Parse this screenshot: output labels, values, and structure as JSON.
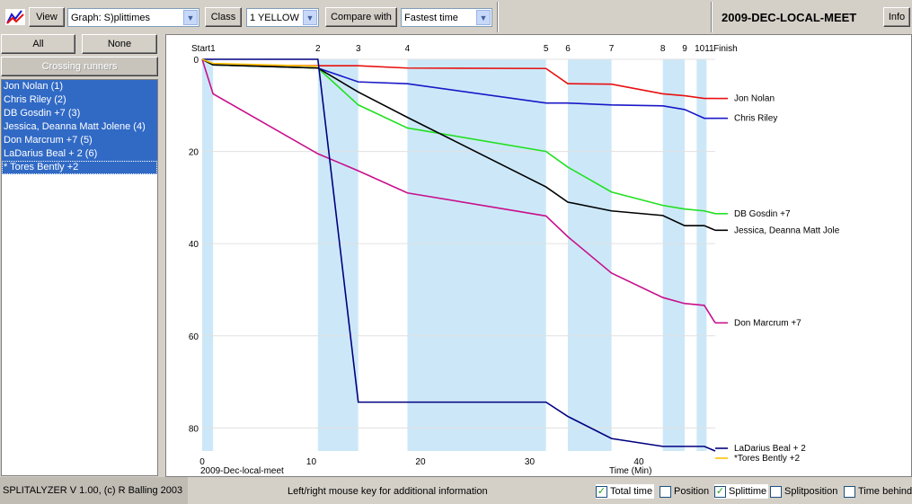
{
  "toolbar": {
    "view_label": "View",
    "graph_select_value": "Graph: S)plittimes",
    "class_label": "Class",
    "class_select_value": "1 YELLOW",
    "compare_label": "Compare with",
    "compare_select_value": "Fastest time",
    "meet_title": "2009-DEC-LOCAL-MEET",
    "info_label": "Info"
  },
  "sidebar": {
    "all_label": "All",
    "none_label": "None",
    "crossing_label": "Crossing runners",
    "runners": [
      "Jon Nolan  (1)",
      "Chris Riley  (2)",
      "DB Gosdin +7  (3)",
      "Jessica, Deanna Matt Jolene  (4)",
      "Don Marcrum +7  (5)",
      "LaDarius Beal + 2  (6)",
      "* Tores Bently +2"
    ]
  },
  "graph": {
    "event_label": "2009-Dec-local-meet",
    "x_axis_label": "Time (Min)",
    "colors": {
      "shade": "#cce8f8",
      "gridline": "#e0e0e0"
    }
  },
  "chart_data": {
    "type": "line",
    "x_name": "Time (Min)",
    "xlim": [
      0,
      47
    ],
    "ylim": [
      0,
      85
    ],
    "x_ticks": [
      0,
      10,
      20,
      30,
      40
    ],
    "y_ticks": [
      0,
      20,
      40,
      60,
      80
    ],
    "controls": [
      {
        "label": "Start1",
        "x": 0
      },
      {
        "label": "2",
        "x": 10.6
      },
      {
        "label": "3",
        "x": 14.3
      },
      {
        "label": "4",
        "x": 18.8
      },
      {
        "label": "5",
        "x": 31.5
      },
      {
        "label": "6",
        "x": 33.5
      },
      {
        "label": "7",
        "x": 37.5
      },
      {
        "label": "8",
        "x": 42.2
      },
      {
        "label": "9",
        "x": 44.2
      },
      {
        "label": "1011",
        "x": 46.0
      },
      {
        "label": "Finish",
        "x": 47.0
      }
    ],
    "shaded_bands": [
      [
        0,
        1.0
      ],
      [
        10.6,
        14.3
      ],
      [
        18.8,
        31.5
      ],
      [
        33.5,
        37.5
      ],
      [
        42.2,
        44.2
      ],
      [
        45.3,
        46.2
      ]
    ],
    "series": [
      {
        "name": "Jon Nolan",
        "color": "#e81010",
        "x": [
          0,
          1.0,
          10.6,
          14.3,
          18.8,
          31.5,
          33.5,
          37.5,
          42.2,
          44.2,
          46.0,
          47.0
        ],
        "y": [
          0,
          1.2,
          1.4,
          1.4,
          1.9,
          2.0,
          5.3,
          5.4,
          7.5,
          7.9,
          8.5,
          8.5
        ]
      },
      {
        "name": "Chris Riley",
        "color": "#1818c8",
        "x": [
          0,
          1.0,
          10.6,
          14.3,
          18.8,
          31.5,
          33.5,
          37.5,
          42.2,
          44.2,
          46.0,
          47.0
        ],
        "y": [
          0,
          1.2,
          1.9,
          4.9,
          5.3,
          9.5,
          9.5,
          9.9,
          10.1,
          10.9,
          12.8,
          12.8
        ]
      },
      {
        "name": "DB Gosdin +7",
        "color": "#20e020",
        "x": [
          0,
          1.0,
          10.6,
          14.3,
          18.8,
          31.5,
          33.5,
          37.5,
          42.2,
          44.2,
          46.0,
          47.0
        ],
        "y": [
          0,
          1.2,
          1.9,
          9.9,
          14.9,
          20.0,
          23.4,
          28.8,
          31.7,
          32.5,
          32.9,
          33.5
        ]
      },
      {
        "name": "Jessica, Deanna Matt Jole",
        "color": "#000000",
        "x": [
          0,
          1.0,
          10.6,
          14.3,
          18.8,
          31.5,
          33.5,
          37.5,
          42.2,
          44.2,
          46.0,
          47.0
        ],
        "y": [
          0,
          1.2,
          1.9,
          7.1,
          12.6,
          27.7,
          31.0,
          32.9,
          33.9,
          36.1,
          36.1,
          37.1
        ]
      },
      {
        "name": "Don Marcrum +7",
        "color": "#c8108c",
        "x": [
          0,
          1.0,
          10.6,
          14.3,
          18.8,
          31.5,
          33.5,
          37.5,
          42.2,
          44.2,
          46.0,
          47.0
        ],
        "y": [
          0,
          7.5,
          20.5,
          24.2,
          29.0,
          34.0,
          38.5,
          46.4,
          51.7,
          53.0,
          53.4,
          57.2
        ]
      },
      {
        "name": "LaDarius Beal + 2",
        "color": "#000080",
        "x": [
          0,
          10.6,
          14.3,
          18.8,
          31.5,
          33.5,
          37.5,
          42.2,
          44.2,
          46.0,
          47.0
        ],
        "y": [
          0,
          0,
          74.4,
          74.4,
          74.4,
          77.5,
          82.3,
          84.0,
          84.0,
          84.0,
          85.0
        ]
      },
      {
        "name": "*Tores Bently +2",
        "color": "#ffc000",
        "x": [
          0,
          1.0,
          10.6
        ],
        "y": [
          0,
          0.9,
          1.5
        ]
      }
    ]
  },
  "status": {
    "version": "SPLITALYZER V 1.00, (c) R Balling 2003",
    "hint": "Left/right mouse key for additional information",
    "total_time": "Total time",
    "position": "Position",
    "splittime": "Splittime",
    "splitposition": "Splitposition",
    "time_behind": "Time behind"
  }
}
